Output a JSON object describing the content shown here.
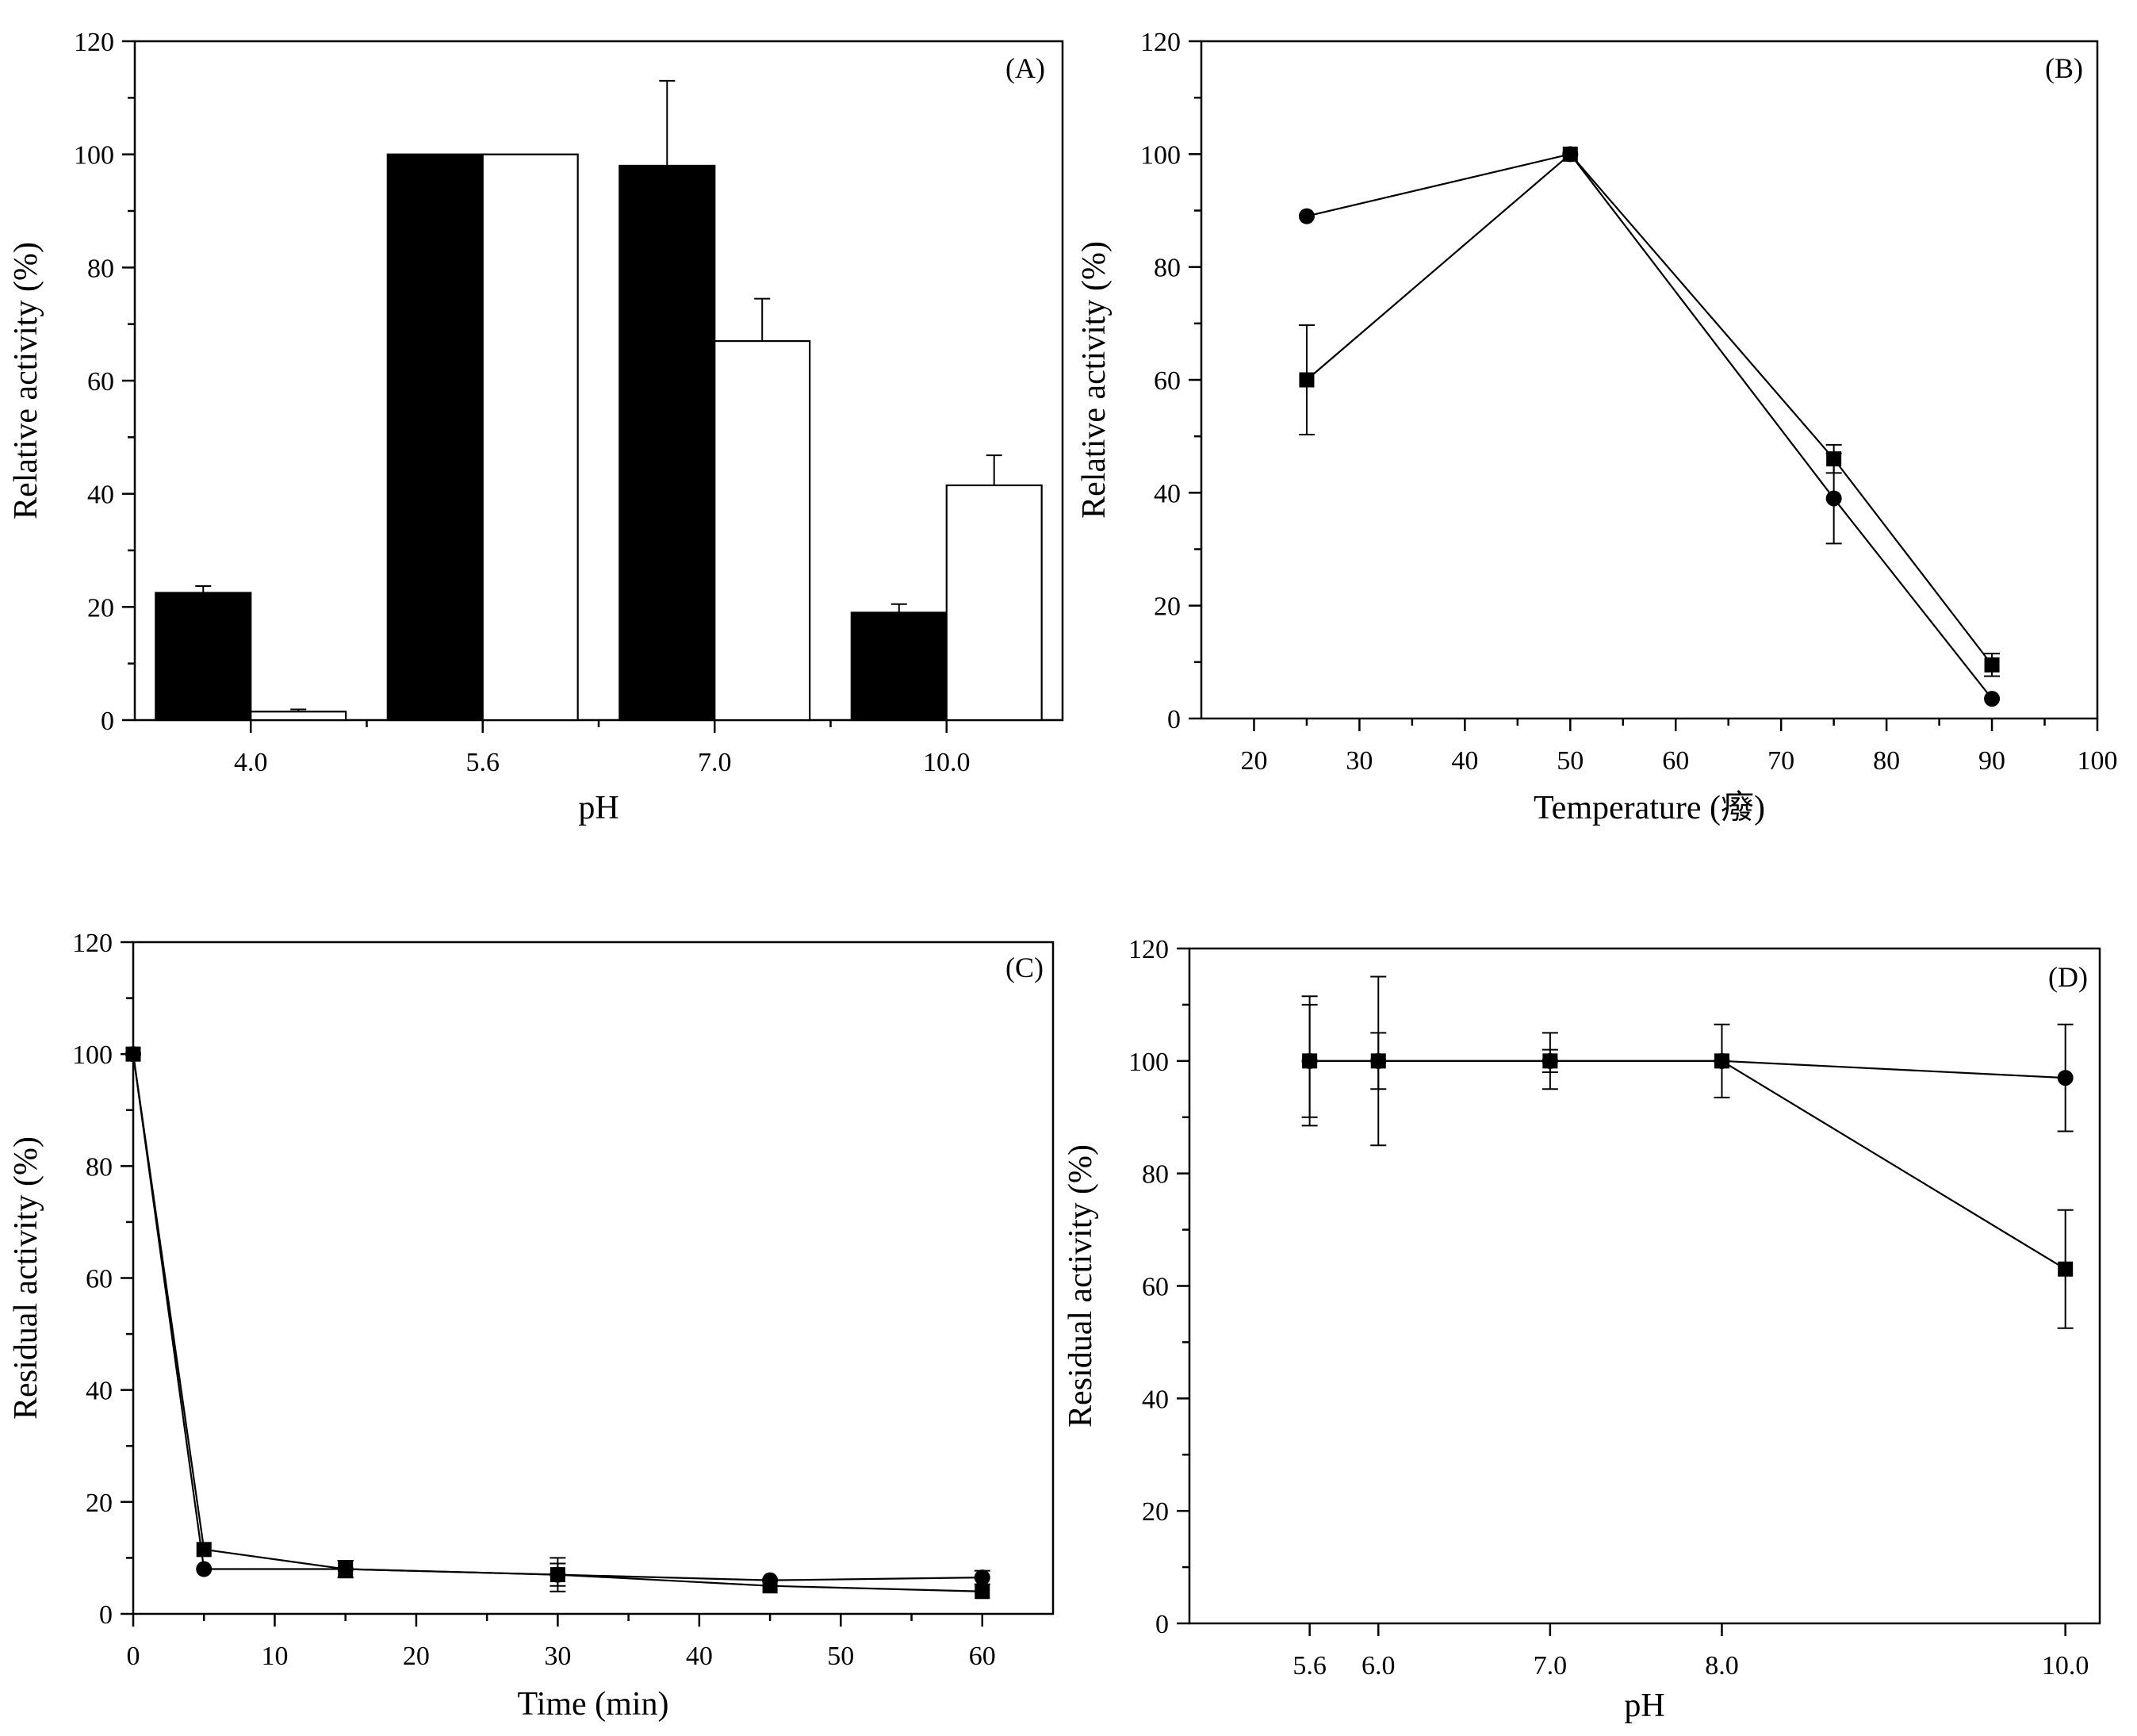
{
  "chart_data": [
    {
      "panel": "(A)",
      "type": "bar",
      "xlabel": "pH",
      "ylabel": "Relative activity (%)",
      "ylim": [
        0,
        120
      ],
      "yticks": [
        0,
        20,
        40,
        60,
        80,
        100,
        120
      ],
      "categories": [
        "4.0",
        "5.6",
        "7.0",
        "10.0"
      ],
      "series": [
        {
          "name": "filled",
          "color": "#000000",
          "values": [
            22.5,
            100,
            98,
            19
          ],
          "errors": [
            1.2,
            0,
            15,
            1.5
          ]
        },
        {
          "name": "open",
          "color": "#ffffff",
          "values": [
            1.5,
            100,
            67,
            41.5
          ],
          "errors": [
            0.4,
            0,
            7.5,
            5.3
          ]
        }
      ],
      "legend": "none"
    },
    {
      "panel": "(B)",
      "type": "line",
      "xlabel": "Temperature (癈)",
      "ylabel": "Relative activity (%)",
      "xlim": [
        15,
        100
      ],
      "xticks": [
        20,
        30,
        40,
        50,
        60,
        70,
        80,
        90,
        100
      ],
      "ylim": [
        0,
        120
      ],
      "yticks": [
        0,
        20,
        40,
        60,
        80,
        100,
        120
      ],
      "series": [
        {
          "name": "square",
          "marker": "square",
          "x": [
            25,
            50,
            75,
            90
          ],
          "y": [
            60,
            100,
            46,
            9.5
          ],
          "errors": [
            9.7,
            0.5,
            2.5,
            2
          ]
        },
        {
          "name": "circle",
          "marker": "circle",
          "x": [
            25,
            50,
            75,
            90
          ],
          "y": [
            89,
            100,
            39,
            3.5
          ],
          "errors": [
            0.5,
            0.5,
            8,
            0.5
          ]
        }
      ],
      "legend": "none"
    },
    {
      "panel": "(C)",
      "type": "line",
      "xlabel": "Time (min)",
      "ylabel": "Residual activity (%)",
      "xlim": [
        0,
        65
      ],
      "xticks": [
        0,
        10,
        20,
        30,
        40,
        50,
        60
      ],
      "ylim": [
        0,
        120
      ],
      "yticks": [
        0,
        20,
        40,
        60,
        80,
        100,
        120
      ],
      "series": [
        {
          "name": "square",
          "marker": "square",
          "x": [
            0,
            5,
            15,
            30,
            45,
            60
          ],
          "y": [
            100,
            11.5,
            8,
            7,
            5,
            4
          ],
          "errors": [
            0,
            0.5,
            1.5,
            3,
            0.5,
            0.5
          ]
        },
        {
          "name": "circle",
          "marker": "circle",
          "x": [
            0,
            5,
            15,
            30,
            45,
            60
          ],
          "y": [
            100,
            8,
            8,
            7,
            6,
            6.5
          ],
          "errors": [
            0,
            0.5,
            1.5,
            2,
            0.5,
            1.2
          ]
        }
      ],
      "legend": "none"
    },
    {
      "panel": "(D)",
      "type": "line",
      "xlabel": "pH",
      "ylabel": "Residual activity (%)",
      "xlim": [
        4.9,
        10.2
      ],
      "xticks": [
        5.6,
        6.0,
        7.0,
        8.0,
        10.0
      ],
      "xticklabels": [
        "5.6",
        "6.0",
        "7.0",
        "8.0",
        "10.0"
      ],
      "ylim": [
        0,
        120
      ],
      "yticks": [
        0,
        20,
        40,
        60,
        80,
        100,
        120
      ],
      "series": [
        {
          "name": "square",
          "marker": "square",
          "x": [
            5.6,
            6.0,
            7.0,
            8.0,
            10.0
          ],
          "y": [
            100,
            100,
            100,
            100,
            63
          ],
          "errors": [
            10,
            15,
            5,
            6.5,
            10.5
          ]
        },
        {
          "name": "circle",
          "marker": "circle",
          "x": [
            5.6,
            6.0,
            7.0,
            8.0,
            10.0
          ],
          "y": [
            100,
            100,
            100,
            100,
            97
          ],
          "errors": [
            11.5,
            5,
            2,
            0.5,
            9.5
          ]
        }
      ],
      "legend": "none"
    }
  ]
}
